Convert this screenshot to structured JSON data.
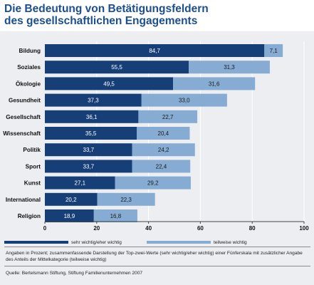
{
  "title": {
    "line1": "Die Bedeutung von Betätigungsfeldern",
    "line2": "des gesellschaftlichen Engagements"
  },
  "colors": {
    "primary": "#163f78",
    "secondary": "#87acd4",
    "title": "#1b4f8f",
    "panel": "#eceef1",
    "grid": "#ffffff"
  },
  "chart_data": {
    "type": "bar",
    "orientation": "horizontal",
    "stacked": true,
    "categories": [
      "Bildung",
      "Soziales",
      "Ökologie",
      "Gesundheit",
      "Gesellschaft",
      "Wissenschaft",
      "Politik",
      "Sport",
      "Kunst",
      "International",
      "Religion"
    ],
    "series": [
      {
        "name": "sehr wichtig/eher wichtig",
        "values": [
          84.7,
          55.5,
          49.5,
          37.3,
          36.1,
          35.5,
          33.7,
          33.7,
          27.1,
          20.2,
          18.9
        ],
        "labels": [
          "84,7",
          "55,5",
          "49,5",
          "37,3",
          "36,1",
          "35,5",
          "33,7",
          "33,7",
          "27,1",
          "20,2",
          "18,9"
        ]
      },
      {
        "name": "teilweise wichtig",
        "values": [
          7.1,
          31.3,
          31.6,
          33.0,
          22.7,
          20.4,
          24.2,
          22.4,
          29.2,
          22.3,
          16.8
        ],
        "labels": [
          "7,1",
          "31,3",
          "31,6",
          "33,0",
          "22,7",
          "20,4",
          "24,2",
          "22,4",
          "29,2",
          "22,3",
          "16,8"
        ]
      }
    ],
    "xlim": [
      0,
      100
    ],
    "xticks": [
      0,
      20,
      40,
      60,
      80,
      100
    ],
    "xtick_labels": [
      "0",
      "20",
      "40",
      "60",
      "80",
      "100"
    ],
    "grid": true,
    "legend_position": "bottom-left"
  },
  "notes": {
    "description": "Angaben in Prozent; zusammenfassende Darstellung der Top-zwei-Werte (sehr wichtig/eher wichtig) einer Fünferskala mit zusätzlicher Angabe des Anteils der Mittelkategorie (teilweise wichtig)",
    "source": "Quelle: Bertelsmann Stiftung, Stiftung Familienunternehmen 2007"
  }
}
